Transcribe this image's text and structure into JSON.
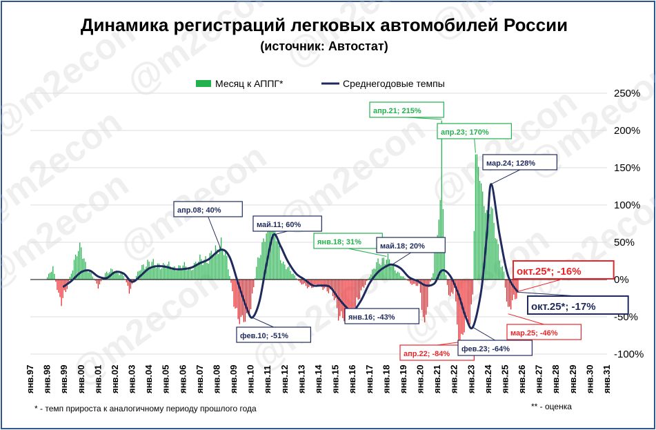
{
  "chart_data": {
    "type": "bar+line",
    "title": "Динамика регистраций легковых автомобилей России",
    "subtitle": "(источник: Автостат)",
    "watermark": "@m2econ",
    "legend": {
      "placement": "top",
      "items": [
        {
          "name": "Месяц к АППГ*",
          "kind": "bar",
          "color": "#22b14c"
        },
        {
          "name": "Среднегодовые темпы",
          "kind": "line",
          "color": "#1f2a5c"
        }
      ]
    },
    "footnote_left": "* - темп прироста к аналогичному периоду прошлого года",
    "footnote_right": "** - оценка",
    "y_axis": {
      "min": -100,
      "max": 250,
      "step": 50,
      "tick_labels": [
        "-100%",
        "-50%",
        "0%",
        "50%",
        "100%",
        "150%",
        "200%",
        "250%"
      ],
      "position": "right"
    },
    "x_axis": {
      "start": 1997,
      "end": 2031,
      "tick_labels": [
        "янв.97",
        "янв.98",
        "янв.99",
        "янв.00",
        "янв.01",
        "янв.02",
        "янв.03",
        "янв.04",
        "янв.05",
        "янв.06",
        "янв.07",
        "янв.08",
        "янв.09",
        "янв.10",
        "янв.11",
        "янв.12",
        "янв.13",
        "янв.14",
        "янв.15",
        "янв.16",
        "янв.17",
        "янв.18",
        "янв.19",
        "янв.20",
        "янв.21",
        "янв.22",
        "янв.23",
        "янв.24",
        "янв.25",
        "янв.26",
        "янв.27",
        "янв.28",
        "янв.29",
        "янв.30",
        "янв.31"
      ]
    },
    "colors": {
      "bar_positive": "#22b14c",
      "bar_negative": "#e8262a",
      "line": "#1f2a5c",
      "frame": "#2f5597",
      "grid": "#dcdcdc"
    },
    "series": [
      {
        "name": "Месяц к АППГ*",
        "type": "bar",
        "monthly_anchors": [
          [
            "1998-01",
            3
          ],
          [
            "1998-05",
            15
          ],
          [
            "1998-09",
            -20
          ],
          [
            "1998-11",
            -28
          ],
          [
            "1999-02",
            -18
          ],
          [
            "1999-06",
            10
          ],
          [
            "1999-10",
            38
          ],
          [
            "2000-01",
            40
          ],
          [
            "2000-04",
            20
          ],
          [
            "2000-09",
            5
          ],
          [
            "2001-01",
            -10
          ],
          [
            "2001-06",
            8
          ],
          [
            "2001-11",
            12
          ],
          [
            "2002-03",
            10
          ],
          [
            "2002-07",
            5
          ],
          [
            "2002-11",
            -15
          ],
          [
            "2003-02",
            -3
          ],
          [
            "2003-06",
            12
          ],
          [
            "2004-01",
            25
          ],
          [
            "2004-06",
            18
          ],
          [
            "2005-01",
            20
          ],
          [
            "2005-06",
            15
          ],
          [
            "2006-01",
            18
          ],
          [
            "2006-06",
            15
          ],
          [
            "2007-01",
            25
          ],
          [
            "2007-06",
            28
          ],
          [
            "2008-01",
            38
          ],
          [
            "2008-04",
            52
          ],
          [
            "2008-07",
            35
          ],
          [
            "2008-10",
            5
          ],
          [
            "2009-01",
            -28
          ],
          [
            "2009-04",
            -50
          ],
          [
            "2009-07",
            -57
          ],
          [
            "2009-10",
            -52
          ],
          [
            "2010-01",
            -35
          ],
          [
            "2010-05",
            15
          ],
          [
            "2010-09",
            45
          ],
          [
            "2011-01",
            75
          ],
          [
            "2011-04",
            80
          ],
          [
            "2011-08",
            50
          ],
          [
            "2011-12",
            20
          ],
          [
            "2012-06",
            10
          ],
          [
            "2012-12",
            -5
          ],
          [
            "2013-06",
            -10
          ],
          [
            "2013-12",
            -8
          ],
          [
            "2014-06",
            -12
          ],
          [
            "2014-11",
            -20
          ],
          [
            "2015-03",
            -45
          ],
          [
            "2015-07",
            -50
          ],
          [
            "2015-12",
            -45
          ],
          [
            "2016-04",
            -30
          ],
          [
            "2016-09",
            -10
          ],
          [
            "2017-01",
            5
          ],
          [
            "2017-06",
            20
          ],
          [
            "2018-01",
            31
          ],
          [
            "2018-06",
            15
          ],
          [
            "2018-12",
            5
          ],
          [
            "2019-06",
            -5
          ],
          [
            "2019-12",
            -8
          ],
          [
            "2020-04",
            -65
          ],
          [
            "2020-05",
            -45
          ],
          [
            "2020-07",
            -10
          ],
          [
            "2020-10",
            10
          ],
          [
            "2021-03",
            100
          ],
          [
            "2021-04",
            215
          ],
          [
            "2021-05",
            105
          ],
          [
            "2021-07",
            5
          ],
          [
            "2021-10",
            -30
          ],
          [
            "2022-01",
            -10
          ],
          [
            "2022-04",
            -84
          ],
          [
            "2022-06",
            -80
          ],
          [
            "2022-09",
            -60
          ],
          [
            "2022-12",
            -55
          ],
          [
            "2023-02",
            -20
          ],
          [
            "2023-04",
            170
          ],
          [
            "2023-06",
            150
          ],
          [
            "2023-09",
            110
          ],
          [
            "2023-12",
            90
          ],
          [
            "2024-03",
            100
          ],
          [
            "2024-06",
            60
          ],
          [
            "2024-09",
            30
          ],
          [
            "2024-12",
            10
          ],
          [
            "2025-03",
            -46
          ],
          [
            "2025-06",
            -30
          ],
          [
            "2025-10",
            -16
          ]
        ]
      },
      {
        "name": "Среднегодовые темпы",
        "type": "line",
        "anchors": [
          [
            "1998-12",
            -10
          ],
          [
            "1999-06",
            -2
          ],
          [
            "2000-01",
            10
          ],
          [
            "2000-07",
            12
          ],
          [
            "2001-01",
            4
          ],
          [
            "2001-07",
            2
          ],
          [
            "2002-01",
            10
          ],
          [
            "2002-07",
            8
          ],
          [
            "2003-01",
            -3
          ],
          [
            "2003-07",
            5
          ],
          [
            "2004-01",
            15
          ],
          [
            "2004-07",
            18
          ],
          [
            "2005-01",
            17
          ],
          [
            "2005-07",
            14
          ],
          [
            "2006-01",
            14
          ],
          [
            "2006-07",
            16
          ],
          [
            "2007-01",
            22
          ],
          [
            "2007-07",
            27
          ],
          [
            "2008-04",
            40
          ],
          [
            "2008-10",
            30
          ],
          [
            "2009-04",
            -5
          ],
          [
            "2009-10",
            -38
          ],
          [
            "2010-02",
            -51
          ],
          [
            "2010-07",
            -30
          ],
          [
            "2010-12",
            20
          ],
          [
            "2011-05",
            60
          ],
          [
            "2011-10",
            45
          ],
          [
            "2012-03",
            25
          ],
          [
            "2012-09",
            8
          ],
          [
            "2013-03",
            0
          ],
          [
            "2013-09",
            -8
          ],
          [
            "2014-03",
            -8
          ],
          [
            "2014-09",
            -10
          ],
          [
            "2015-03",
            -25
          ],
          [
            "2015-09",
            -38
          ],
          [
            "2016-01",
            -43
          ],
          [
            "2016-07",
            -28
          ],
          [
            "2017-01",
            -5
          ],
          [
            "2017-07",
            10
          ],
          [
            "2018-01",
            18
          ],
          [
            "2018-05",
            20
          ],
          [
            "2018-11",
            15
          ],
          [
            "2019-05",
            3
          ],
          [
            "2019-11",
            -2
          ],
          [
            "2020-05",
            -8
          ],
          [
            "2020-11",
            -5
          ],
          [
            "2021-04",
            12
          ],
          [
            "2021-10",
            5
          ],
          [
            "2022-04",
            -20
          ],
          [
            "2022-09",
            -50
          ],
          [
            "2023-02",
            -64
          ],
          [
            "2023-08",
            -15
          ],
          [
            "2023-12",
            60
          ],
          [
            "2024-03",
            128
          ],
          [
            "2024-09",
            60
          ],
          [
            "2025-03",
            5
          ],
          [
            "2025-10",
            -17
          ]
        ]
      }
    ],
    "annotations": [
      {
        "label": "апр.08; 40%",
        "x": "2008-04",
        "y": 40,
        "series": "Среднегодовые темпы",
        "color": "#1f2a5c"
      },
      {
        "label": "фев.10; -51%",
        "x": "2010-02",
        "y": -51,
        "series": "Среднегодовые темпы",
        "color": "#1f2a5c"
      },
      {
        "label": "май.11; 60%",
        "x": "2011-05",
        "y": 60,
        "series": "Среднегодовые темпы",
        "color": "#1f2a5c"
      },
      {
        "label": "янв.18; 31%",
        "x": "2018-01",
        "y": 31,
        "series": "Месяц к АППГ*",
        "color": "#22b14c"
      },
      {
        "label": "май.18; 20%",
        "x": "2018-05",
        "y": 20,
        "series": "Среднегодовые темпы",
        "color": "#1f2a5c"
      },
      {
        "label": "янв.16; -43%",
        "x": "2016-01",
        "y": -43,
        "series": "Среднегодовые темпы",
        "color": "#1f2a5c"
      },
      {
        "label": "апр.21; 215%",
        "x": "2021-04",
        "y": 215,
        "series": "Месяц к АППГ*",
        "color": "#22b14c"
      },
      {
        "label": "апр.23; 170%",
        "x": "2023-04",
        "y": 170,
        "series": "Месяц к АППГ*",
        "color": "#22b14c"
      },
      {
        "label": "мар.24; 128%",
        "x": "2024-03",
        "y": 128,
        "series": "Среднегодовые темпы",
        "color": "#1f2a5c"
      },
      {
        "label": "апр.22; -84%",
        "x": "2022-04",
        "y": -84,
        "series": "Месяц к АППГ*",
        "color": "#e8262a"
      },
      {
        "label": "фев.23; -64%",
        "x": "2023-02",
        "y": -64,
        "series": "Среднегодовые темпы",
        "color": "#1f2a5c"
      },
      {
        "label": "мар.25; -46%",
        "x": "2025-03",
        "y": -46,
        "series": "Месяц к АППГ*",
        "color": "#e8262a"
      },
      {
        "label": "окт.25*; -16%",
        "x": "2025-10",
        "y": -16,
        "series": "Месяц к АППГ*",
        "color": "#e8262a"
      },
      {
        "label": "окт.25*; -17%",
        "x": "2025-10",
        "y": -17,
        "series": "Среднегодовые темпы",
        "color": "#1f2a5c"
      }
    ]
  }
}
